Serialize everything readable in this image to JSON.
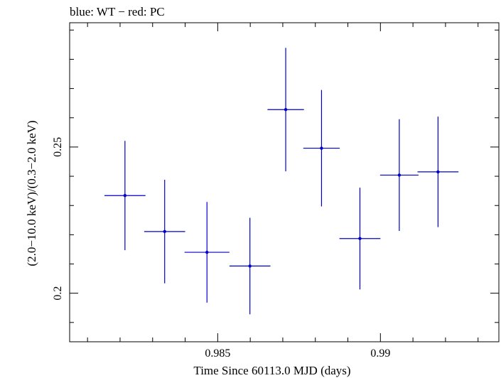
{
  "chart_data": {
    "type": "scatter",
    "title": "blue: WT − red: PC",
    "xlabel": "Time Since 60113.0 MJD (days)",
    "ylabel": "(2.0−10.0 keV)/(0.3−2.0 keV)",
    "xlim": [
      0.98045,
      0.99364
    ],
    "ylim": [
      0.1834,
      0.2925
    ],
    "xticks": [
      {
        "value": 0.985,
        "label": "0.985"
      },
      {
        "value": 0.99,
        "label": "0.99"
      }
    ],
    "yticks": [
      {
        "value": 0.2,
        "label": "0.2"
      },
      {
        "value": 0.25,
        "label": "0.25"
      }
    ],
    "grid": false,
    "series": [
      {
        "color": "#0000cc",
        "points": [
          {
            "x": 0.98215,
            "xerr": 0.00063,
            "y": 0.2334,
            "yerr": 0.0187
          },
          {
            "x": 0.98337,
            "xerr": 0.00063,
            "y": 0.2211,
            "yerr": 0.0177
          },
          {
            "x": 0.98467,
            "xerr": 0.00069,
            "y": 0.214,
            "yerr": 0.0172
          },
          {
            "x": 0.98599,
            "xerr": 0.00063,
            "y": 0.2093,
            "yerr": 0.0165
          },
          {
            "x": 0.98709,
            "xerr": 0.00056,
            "y": 0.2628,
            "yerr": 0.0211
          },
          {
            "x": 0.98819,
            "xerr": 0.00056,
            "y": 0.2496,
            "yerr": 0.0199
          },
          {
            "x": 0.98937,
            "xerr": 0.00063,
            "y": 0.2187,
            "yerr": 0.0174
          },
          {
            "x": 0.99058,
            "xerr": 0.00059,
            "y": 0.2404,
            "yerr": 0.0191
          },
          {
            "x": 0.99177,
            "xerr": 0.00063,
            "y": 0.2415,
            "yerr": 0.0189
          }
        ]
      }
    ]
  }
}
